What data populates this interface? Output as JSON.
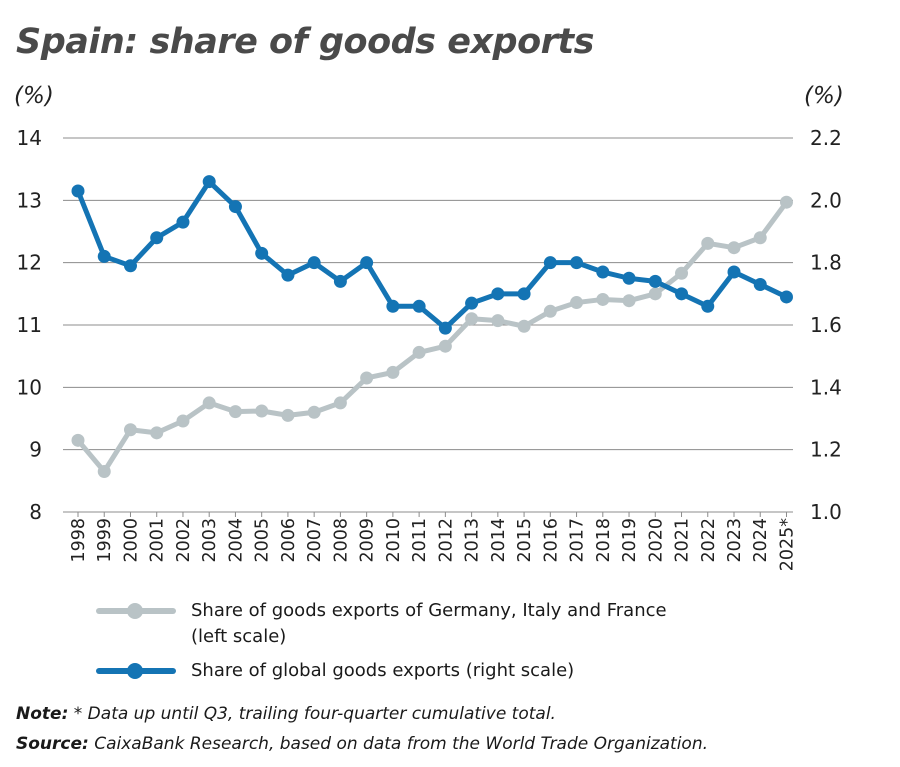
{
  "title": "Spain: share of goods exports",
  "left_unit": "(%)",
  "right_unit": "(%)",
  "colors": {
    "gray_series": "#b9c3c6",
    "blue_series": "#1474b4",
    "grid": "#8c8c8c",
    "title": "#4a4a4a"
  },
  "legend": {
    "gray_line1": "Share of goods exports of Germany, Italy and France",
    "gray_line2": "(left scale)",
    "blue": "Share of global goods exports (right scale)"
  },
  "note": {
    "label": "Note:",
    "text": " * Data up until Q3, trailing four-quarter cumulative total."
  },
  "source": {
    "label": "Source:",
    "text": " CaixaBank Research, based on data from the World Trade Organization."
  },
  "chart_data": {
    "type": "line",
    "title": "Spain: share of goods exports",
    "x": [
      "1998",
      "1999",
      "2000",
      "2001",
      "2002",
      "2003",
      "2004",
      "2005",
      "2006",
      "2007",
      "2008",
      "2009",
      "2010",
      "2011",
      "2012",
      "2013",
      "2014",
      "2015",
      "2016",
      "2017",
      "2018",
      "2019",
      "2020",
      "2021",
      "2022",
      "2023",
      "2024",
      "2025*"
    ],
    "y_left": {
      "ylim": [
        8,
        14
      ],
      "ticks": [
        "8",
        "9",
        "10",
        "11",
        "12",
        "13",
        "14"
      ]
    },
    "y_right": {
      "ylim": [
        1.0,
        2.2
      ],
      "ticks": [
        "1.0",
        "1.2",
        "1.4",
        "1.6",
        "1.8",
        "2.0",
        "2.2"
      ]
    },
    "grid": true,
    "legend_position": "bottom",
    "series": [
      {
        "name": "Share of goods exports of Germany, Italy and France (left scale)",
        "axis": "left",
        "values": [
          9.15,
          8.65,
          9.32,
          9.27,
          9.46,
          9.75,
          9.61,
          9.62,
          9.55,
          9.6,
          9.75,
          10.15,
          10.24,
          10.56,
          10.66,
          11.1,
          11.07,
          10.98,
          11.22,
          11.36,
          11.41,
          11.39,
          11.5,
          11.83,
          12.31,
          12.24,
          12.4,
          12.97
        ]
      },
      {
        "name": "Share of global goods exports (right scale)",
        "axis": "right",
        "values": [
          2.03,
          1.82,
          1.79,
          1.88,
          1.93,
          2.06,
          1.98,
          1.83,
          1.76,
          1.8,
          1.74,
          1.8,
          1.66,
          1.66,
          1.59,
          1.67,
          1.7,
          1.7,
          1.8,
          1.8,
          1.77,
          1.75,
          1.74,
          1.7,
          1.66,
          1.77,
          1.73,
          1.69
        ]
      }
    ]
  }
}
